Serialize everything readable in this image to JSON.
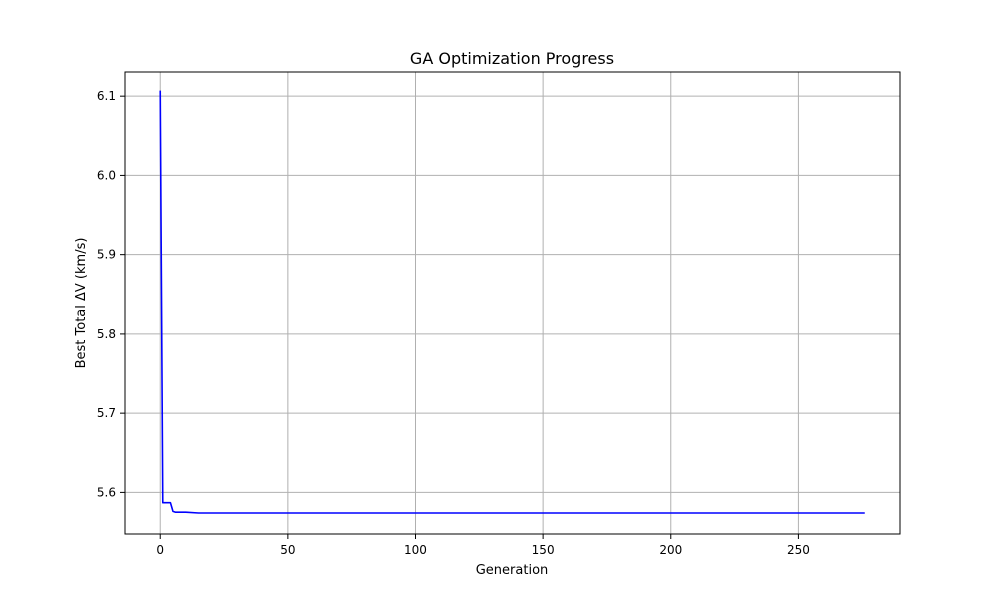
{
  "chart_data": {
    "type": "line",
    "title": "GA Optimization Progress",
    "xlabel": "Generation",
    "ylabel": "Best Total ΔV (km/s)",
    "xlim": [
      -13.8,
      289.8
    ],
    "ylim": [
      5.5475,
      6.1305
    ],
    "xticks": [
      0,
      50,
      100,
      150,
      200,
      250
    ],
    "yticks": [
      5.6,
      5.7,
      5.8,
      5.9,
      6.0,
      6.1
    ],
    "xtick_labels": [
      "0",
      "50",
      "100",
      "150",
      "200",
      "250"
    ],
    "ytick_labels": [
      "5.6",
      "5.7",
      "5.8",
      "5.9",
      "6.0",
      "6.1"
    ],
    "grid": true,
    "legend": null,
    "series": [
      {
        "color": "#0000ff",
        "x": [
          0,
          1,
          2,
          3,
          4,
          5,
          6,
          7,
          8,
          10,
          15,
          20,
          50,
          100,
          150,
          200,
          250,
          276
        ],
        "y": [
          6.107,
          5.587,
          5.587,
          5.587,
          5.587,
          5.576,
          5.575,
          5.575,
          5.575,
          5.575,
          5.574,
          5.574,
          5.574,
          5.574,
          5.574,
          5.574,
          5.574,
          5.574
        ]
      }
    ]
  }
}
